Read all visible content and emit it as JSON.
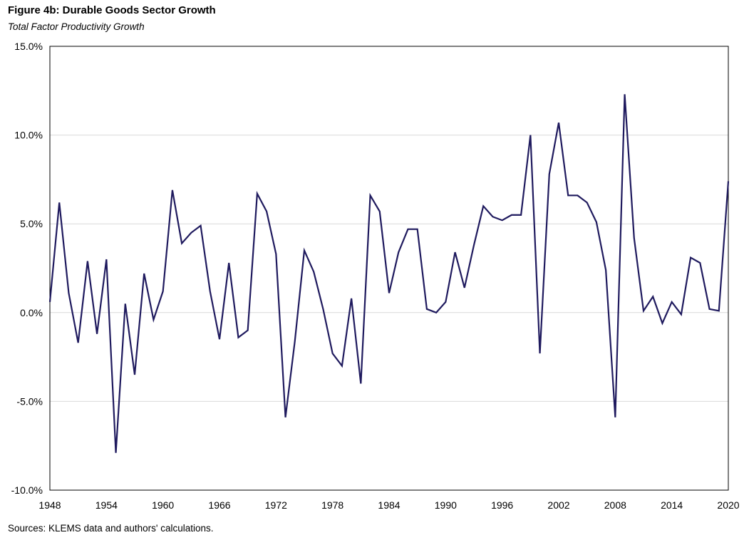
{
  "chart_data": {
    "type": "line",
    "title": "Figure 4b: Durable Goods Sector Growth",
    "subtitle": "Total Factor Productivity Growth",
    "source": "Sources: KLEMS data and authors' calculations.",
    "xlabel": "",
    "ylabel": "",
    "ylim": [
      -10,
      15
    ],
    "yticks": [
      -10,
      -5,
      0,
      5,
      10,
      15
    ],
    "ytick_labels": [
      "-10.0%",
      "-5.0%",
      "0.0%",
      "5.0%",
      "10.0%",
      "15.0%"
    ],
    "xlim": [
      1948,
      2020
    ],
    "xticks": [
      1948,
      1954,
      1960,
      1966,
      1972,
      1978,
      1984,
      1990,
      1996,
      2002,
      2008,
      2014,
      2020
    ],
    "xtick_labels": [
      "1948",
      "1954",
      "1960",
      "1966",
      "1972",
      "1978",
      "1984",
      "1990",
      "1996",
      "2002",
      "2008",
      "2014",
      "2020"
    ],
    "grid": true,
    "series": [
      {
        "name": "Total Factor Productivity Growth",
        "color": "#1f1a5e",
        "x": [
          1948,
          1949,
          1950,
          1951,
          1952,
          1953,
          1954,
          1955,
          1956,
          1957,
          1958,
          1959,
          1960,
          1961,
          1962,
          1963,
          1964,
          1965,
          1966,
          1967,
          1968,
          1969,
          1970,
          1971,
          1972,
          1973,
          1974,
          1975,
          1976,
          1977,
          1978,
          1979,
          1980,
          1981,
          1982,
          1983,
          1984,
          1985,
          1986,
          1987,
          1988,
          1989,
          1990,
          1991,
          1992,
          1993,
          1994,
          1995,
          1996,
          1997,
          1998,
          1999,
          2000,
          2001,
          2002,
          2003,
          2004,
          2005,
          2006,
          2007,
          2008,
          2009,
          2010,
          2011,
          2012,
          2013,
          2014,
          2015,
          2016,
          2017,
          2018,
          2019,
          2020
        ],
        "values": [
          0.6,
          6.2,
          1.1,
          -1.7,
          2.9,
          -1.2,
          3.0,
          -7.9,
          0.5,
          -3.5,
          2.2,
          -0.4,
          1.2,
          6.9,
          3.9,
          4.5,
          4.9,
          1.2,
          -1.5,
          2.8,
          -1.4,
          -1.0,
          6.7,
          5.7,
          3.3,
          -5.9,
          -1.6,
          3.5,
          2.3,
          0.2,
          -2.3,
          -3.0,
          0.8,
          -4.0,
          6.6,
          5.7,
          1.1,
          3.4,
          4.7,
          4.7,
          0.2,
          0.0,
          0.6,
          3.4,
          1.4,
          3.8,
          6.0,
          5.4,
          5.2,
          5.5,
          5.5,
          10.0,
          -2.3,
          7.8,
          10.7,
          6.6,
          6.6,
          6.2,
          5.1,
          2.4,
          -5.9,
          12.3,
          4.2,
          0.1,
          0.9,
          -0.6,
          0.6,
          -0.1,
          3.1,
          2.8,
          0.2,
          0.1,
          7.4
        ]
      }
    ]
  }
}
